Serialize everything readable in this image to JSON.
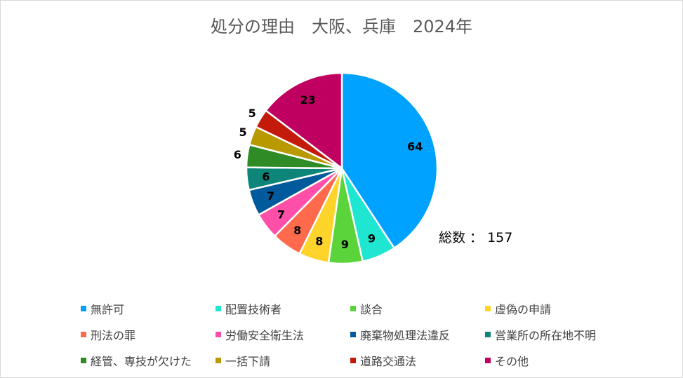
{
  "chart_data": {
    "type": "pie",
    "title": "処分の理由　大阪、兵庫　2024年",
    "total_label": "総数 ： 157",
    "legend_position": "bottom",
    "slices": [
      {
        "label": "無許可",
        "value": 64,
        "color": "#00a2ff"
      },
      {
        "label": "配置技術者",
        "value": 9,
        "color": "#1ee6d0"
      },
      {
        "label": "談合",
        "value": 9,
        "color": "#5ad43a"
      },
      {
        "label": "虚偽の申請",
        "value": 8,
        "color": "#ffd42a"
      },
      {
        "label": "刑法の罪",
        "value": 8,
        "color": "#ff6a4d"
      },
      {
        "label": "労働安全衛生法",
        "value": 7,
        "color": "#ff4fa8"
      },
      {
        "label": "廃棄物処理法違反",
        "value": 7,
        "color": "#005a9c"
      },
      {
        "label": "営業所の所在地不明",
        "value": 6,
        "color": "#0e8579"
      },
      {
        "label": "経管、専技が欠けた",
        "value": 6,
        "color": "#2e8b25"
      },
      {
        "label": "一括下請",
        "value": 5,
        "color": "#b89a00"
      },
      {
        "label": "道路交通法",
        "value": 5,
        "color": "#c41a0c"
      },
      {
        "label": "その他",
        "value": 23,
        "color": "#c00060"
      }
    ]
  }
}
